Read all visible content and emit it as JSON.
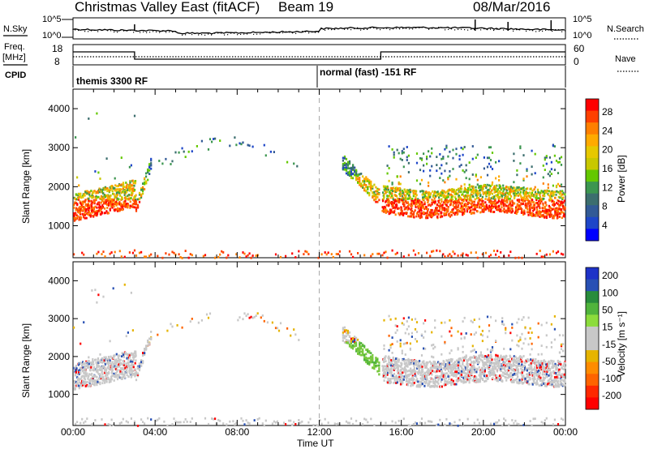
{
  "header": {
    "station": "Christmas Valley East (fitACF)",
    "beam": "Beam 19",
    "date": "08/Mar/2016"
  },
  "panels": {
    "nsky": {
      "left_label": "N.Sky",
      "right_label": "N.Search",
      "left_ticks": [
        "10^5",
        "10^0"
      ],
      "right_ticks": [
        "10^5",
        "10^0"
      ]
    },
    "freq": {
      "left_label_1": "Freq.",
      "left_label_2": "[MHz]",
      "right_label": "Nave",
      "left_ticks": [
        "18",
        "8"
      ],
      "right_ticks": [
        "60",
        "0"
      ]
    },
    "cpid": {
      "label": "CPID",
      "mode_1": "themis 3300 RF",
      "mode_2": "normal (fast) -151 RF"
    }
  },
  "chart_data": [
    {
      "type": "heatmap",
      "name": "power",
      "ylabel": "Slant Range [km]",
      "yticks": [
        1000,
        2000,
        3000,
        4000
      ],
      "ylim": [
        180,
        4500
      ],
      "colorbar": {
        "label": "Power [dB]",
        "ticks": [
          "28",
          "24",
          "20",
          "16",
          "12",
          "8",
          "4"
        ],
        "colors": [
          "#ff0000",
          "#ff4000",
          "#ff7f00",
          "#ffaa00",
          "#e6c800",
          "#c8c800",
          "#64c800",
          "#3c9650",
          "#3c6e6e",
          "#325a96",
          "#1e46c8",
          "#0000ff"
        ]
      }
    },
    {
      "type": "heatmap",
      "name": "velocity",
      "ylabel": "Slant Range [km]",
      "yticks": [
        1000,
        2000,
        3000,
        4000
      ],
      "ylim": [
        180,
        4500
      ],
      "colorbar": {
        "label": "Velocity [m s⁻¹]",
        "ticks": [
          "200",
          "100",
          "50",
          "15",
          "-15",
          "-50",
          "-100",
          "-200"
        ],
        "colors": [
          "#1e32c8",
          "#2850b4",
          "#288c3c",
          "#50b43c",
          "#8cdc3c",
          "#c8c8c8",
          "#c8c8c8",
          "#e6b400",
          "#ff8c00",
          "#ff6400",
          "#ff2800",
          "#ff0000"
        ]
      }
    }
  ],
  "time_axis": {
    "label": "Time UT",
    "ticks": [
      "00:00",
      "04:00",
      "08:00",
      "12:00",
      "16:00",
      "20:00",
      "00:00"
    ]
  }
}
